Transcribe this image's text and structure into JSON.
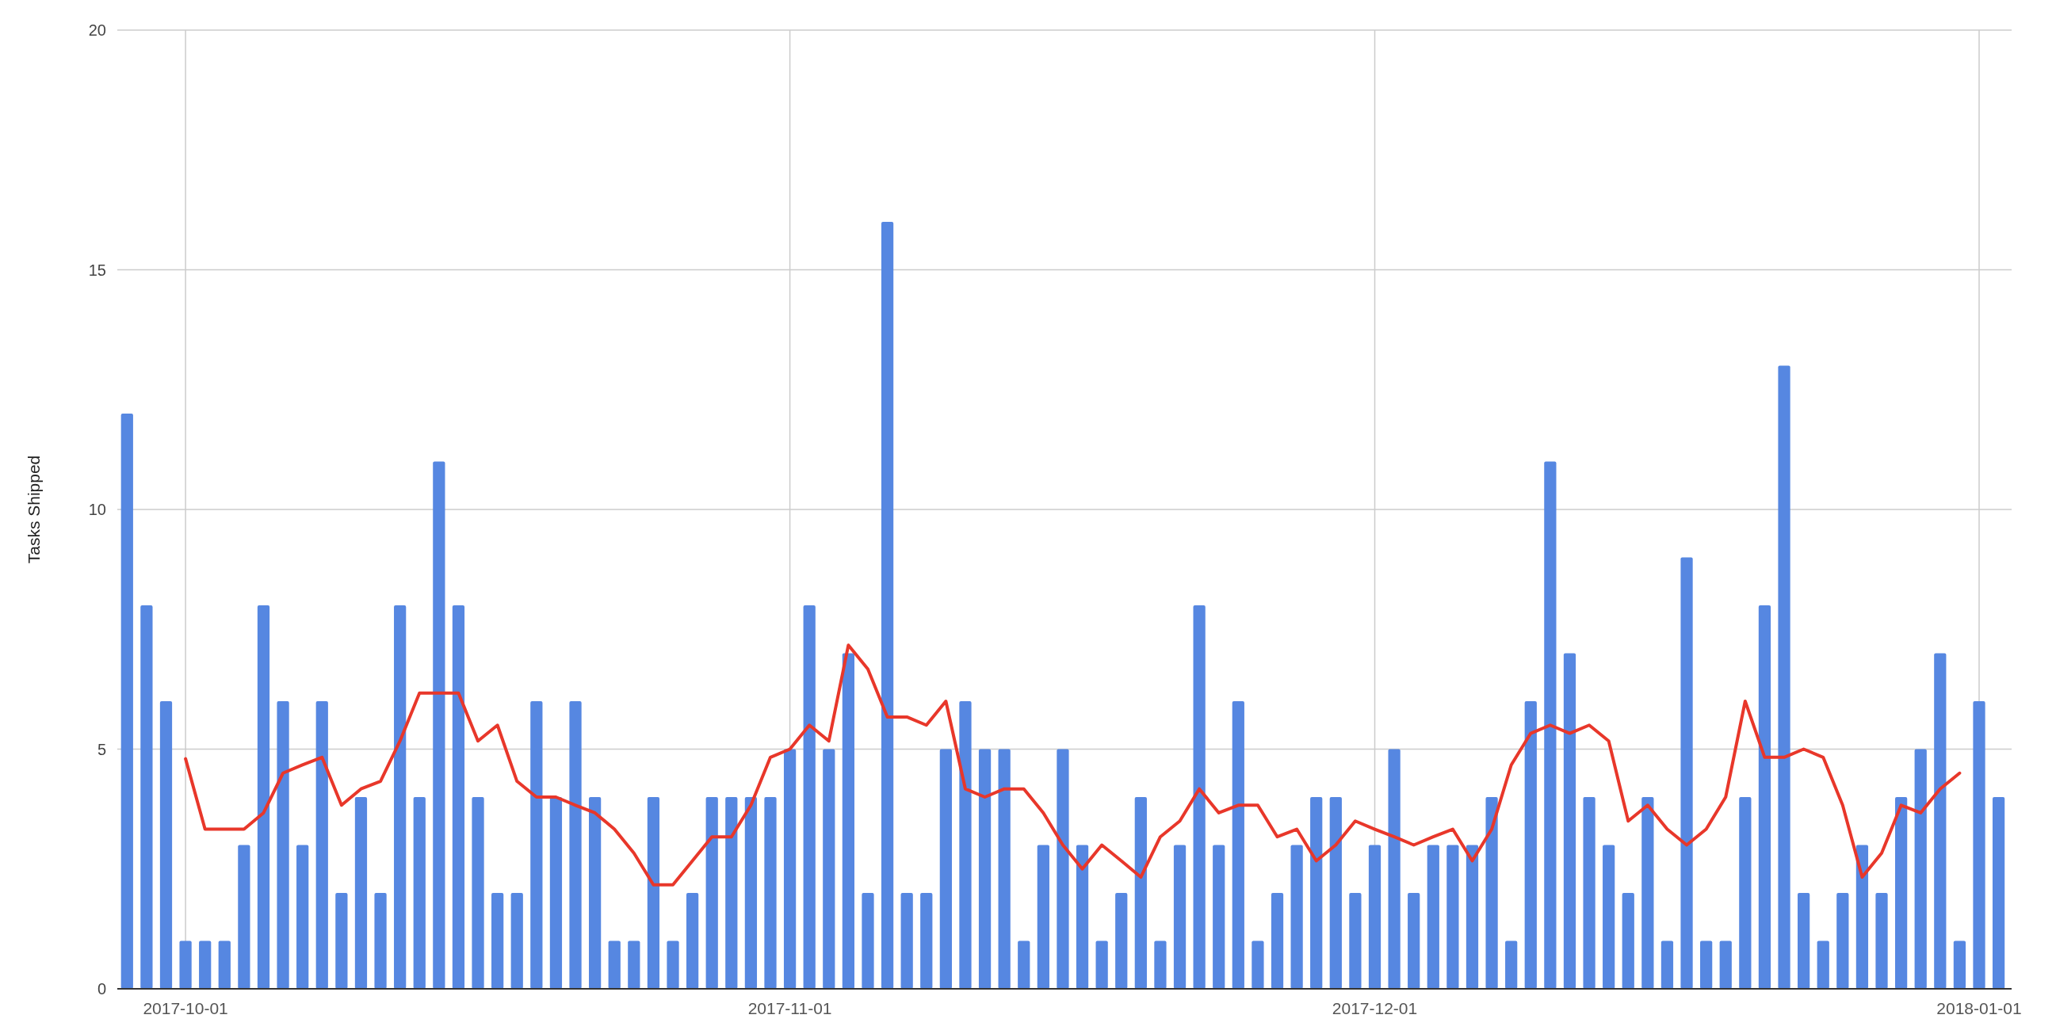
{
  "chart_data": {
    "type": "bar",
    "ylabel": "Tasks Shipped",
    "x": [
      "2017-09-28",
      "2017-09-29",
      "2017-09-30",
      "2017-10-01",
      "2017-10-02",
      "2017-10-03",
      "2017-10-04",
      "2017-10-05",
      "2017-10-06",
      "2017-10-07",
      "2017-10-08",
      "2017-10-09",
      "2017-10-10",
      "2017-10-11",
      "2017-10-12",
      "2017-10-13",
      "2017-10-14",
      "2017-10-15",
      "2017-10-16",
      "2017-10-17",
      "2017-10-18",
      "2017-10-19",
      "2017-10-20",
      "2017-10-21",
      "2017-10-22",
      "2017-10-23",
      "2017-10-24",
      "2017-10-25",
      "2017-10-26",
      "2017-10-27",
      "2017-10-28",
      "2017-10-29",
      "2017-10-30",
      "2017-10-31",
      "2017-11-01",
      "2017-11-02",
      "2017-11-03",
      "2017-11-04",
      "2017-11-05",
      "2017-11-06",
      "2017-11-07",
      "2017-11-08",
      "2017-11-09",
      "2017-11-10",
      "2017-11-11",
      "2017-11-12",
      "2017-11-13",
      "2017-11-14",
      "2017-11-15",
      "2017-11-16",
      "2017-11-17",
      "2017-11-18",
      "2017-11-19",
      "2017-11-20",
      "2017-11-21",
      "2017-11-22",
      "2017-11-23",
      "2017-11-24",
      "2017-11-25",
      "2017-11-26",
      "2017-11-27",
      "2017-11-28",
      "2017-11-29",
      "2017-11-30",
      "2017-12-01",
      "2017-12-02",
      "2017-12-03",
      "2017-12-04",
      "2017-12-05",
      "2017-12-06",
      "2017-12-07",
      "2017-12-08",
      "2017-12-09",
      "2017-12-10",
      "2017-12-11",
      "2017-12-12",
      "2017-12-13",
      "2017-12-14",
      "2017-12-15",
      "2017-12-16",
      "2017-12-17",
      "2017-12-18",
      "2017-12-19",
      "2017-12-20",
      "2017-12-21",
      "2017-12-22",
      "2017-12-23",
      "2017-12-24",
      "2017-12-25",
      "2017-12-26",
      "2017-12-27",
      "2017-12-28",
      "2017-12-29",
      "2017-12-30",
      "2017-12-31",
      "2018-01-01",
      "2018-01-02"
    ],
    "series": [
      {
        "color": "#5687e1",
        "values": [
          12,
          8,
          6,
          1,
          1,
          1,
          3,
          8,
          6,
          3,
          6,
          2,
          4,
          2,
          8,
          4,
          11,
          8,
          4,
          2,
          2,
          6,
          4,
          6,
          4,
          1,
          1,
          4,
          1,
          2,
          4,
          4,
          4,
          4,
          5,
          8,
          5,
          7,
          2,
          16,
          2,
          2,
          5,
          6,
          5,
          5,
          1,
          3,
          5,
          3,
          1,
          2,
          4,
          1,
          3,
          8,
          3,
          6,
          1,
          2,
          3,
          4,
          4,
          2,
          3,
          5,
          2,
          3,
          3,
          3,
          4,
          1,
          6,
          11,
          7,
          4,
          3,
          2,
          4,
          1,
          9,
          1,
          1,
          4,
          8,
          13,
          2,
          1,
          2,
          3,
          2,
          4,
          5,
          7,
          1,
          6,
          4
        ]
      },
      {
        "type": "line",
        "color": "#e8372a",
        "x": [
          "2017-10-01",
          "2017-10-02",
          "2017-10-03",
          "2017-10-04",
          "2017-10-05",
          "2017-10-06",
          "2017-10-07",
          "2017-10-08",
          "2017-10-09",
          "2017-10-10",
          "2017-10-11",
          "2017-10-12",
          "2017-10-13",
          "2017-10-14",
          "2017-10-15",
          "2017-10-16",
          "2017-10-17",
          "2017-10-18",
          "2017-10-19",
          "2017-10-20",
          "2017-10-21",
          "2017-10-22",
          "2017-10-23",
          "2017-10-24",
          "2017-10-25",
          "2017-10-26",
          "2017-10-27",
          "2017-10-28",
          "2017-10-29",
          "2017-10-30",
          "2017-10-31",
          "2017-11-01",
          "2017-11-02",
          "2017-11-03",
          "2017-11-04",
          "2017-11-05",
          "2017-11-06",
          "2017-11-07",
          "2017-11-08",
          "2017-11-09",
          "2017-11-10",
          "2017-11-11",
          "2017-11-12",
          "2017-11-13",
          "2017-11-14",
          "2017-11-15",
          "2017-11-16",
          "2017-11-17",
          "2017-11-18",
          "2017-11-19",
          "2017-11-20",
          "2017-11-21",
          "2017-11-22",
          "2017-11-23",
          "2017-11-24",
          "2017-11-25",
          "2017-11-26",
          "2017-11-27",
          "2017-11-28",
          "2017-11-29",
          "2017-11-30",
          "2017-12-01",
          "2017-12-02",
          "2017-12-03",
          "2017-12-04",
          "2017-12-05",
          "2017-12-06",
          "2017-12-07",
          "2017-12-08",
          "2017-12-09",
          "2017-12-10",
          "2017-12-11",
          "2017-12-12",
          "2017-12-13",
          "2017-12-14",
          "2017-12-15",
          "2017-12-16",
          "2017-12-17",
          "2017-12-18",
          "2017-12-19",
          "2017-12-20",
          "2017-12-21",
          "2017-12-22",
          "2017-12-23",
          "2017-12-24",
          "2017-12-25",
          "2017-12-26",
          "2017-12-27",
          "2017-12-28",
          "2017-12-29",
          "2017-12-30",
          "2017-12-31"
        ],
        "values": [
          4.8,
          3.33,
          3.33,
          3.33,
          3.67,
          4.5,
          4.67,
          4.83,
          3.83,
          4.17,
          4.33,
          5.17,
          6.17,
          6.17,
          6.17,
          5.17,
          5.5,
          4.33,
          4,
          4,
          3.83,
          3.67,
          3.33,
          2.83,
          2.17,
          2.17,
          2.67,
          3.17,
          3.17,
          3.83,
          4.83,
          5,
          5.5,
          5.17,
          7.17,
          6.67,
          5.67,
          5.67,
          5.5,
          6,
          4.17,
          4,
          4.17,
          4.17,
          3.67,
          3,
          2.5,
          3,
          2.67,
          2.33,
          3.17,
          3.5,
          4.17,
          3.67,
          3.83,
          3.83,
          3.17,
          3.33,
          2.67,
          3,
          3.5,
          3.33,
          3.17,
          3,
          3.17,
          3.33,
          2.67,
          3.33,
          4.67,
          5.33,
          5.5,
          5.33,
          5.5,
          5.17,
          3.5,
          3.83,
          3.33,
          3,
          3.33,
          4,
          6,
          4.83,
          4.83,
          5,
          4.83,
          3.83,
          2.33,
          2.83,
          3.83,
          3.67,
          4.17,
          4.5
        ]
      }
    ],
    "xlim": [
      "2017-09-27T12:00",
      "2018-01-02T16:00"
    ],
    "xticks": [
      "2017-10-01",
      "2017-11-01",
      "2017-12-01",
      "2018-01-01"
    ],
    "ylim": [
      0,
      20
    ],
    "yticks": [
      0,
      5,
      10,
      15,
      20
    ],
    "grid": true
  }
}
